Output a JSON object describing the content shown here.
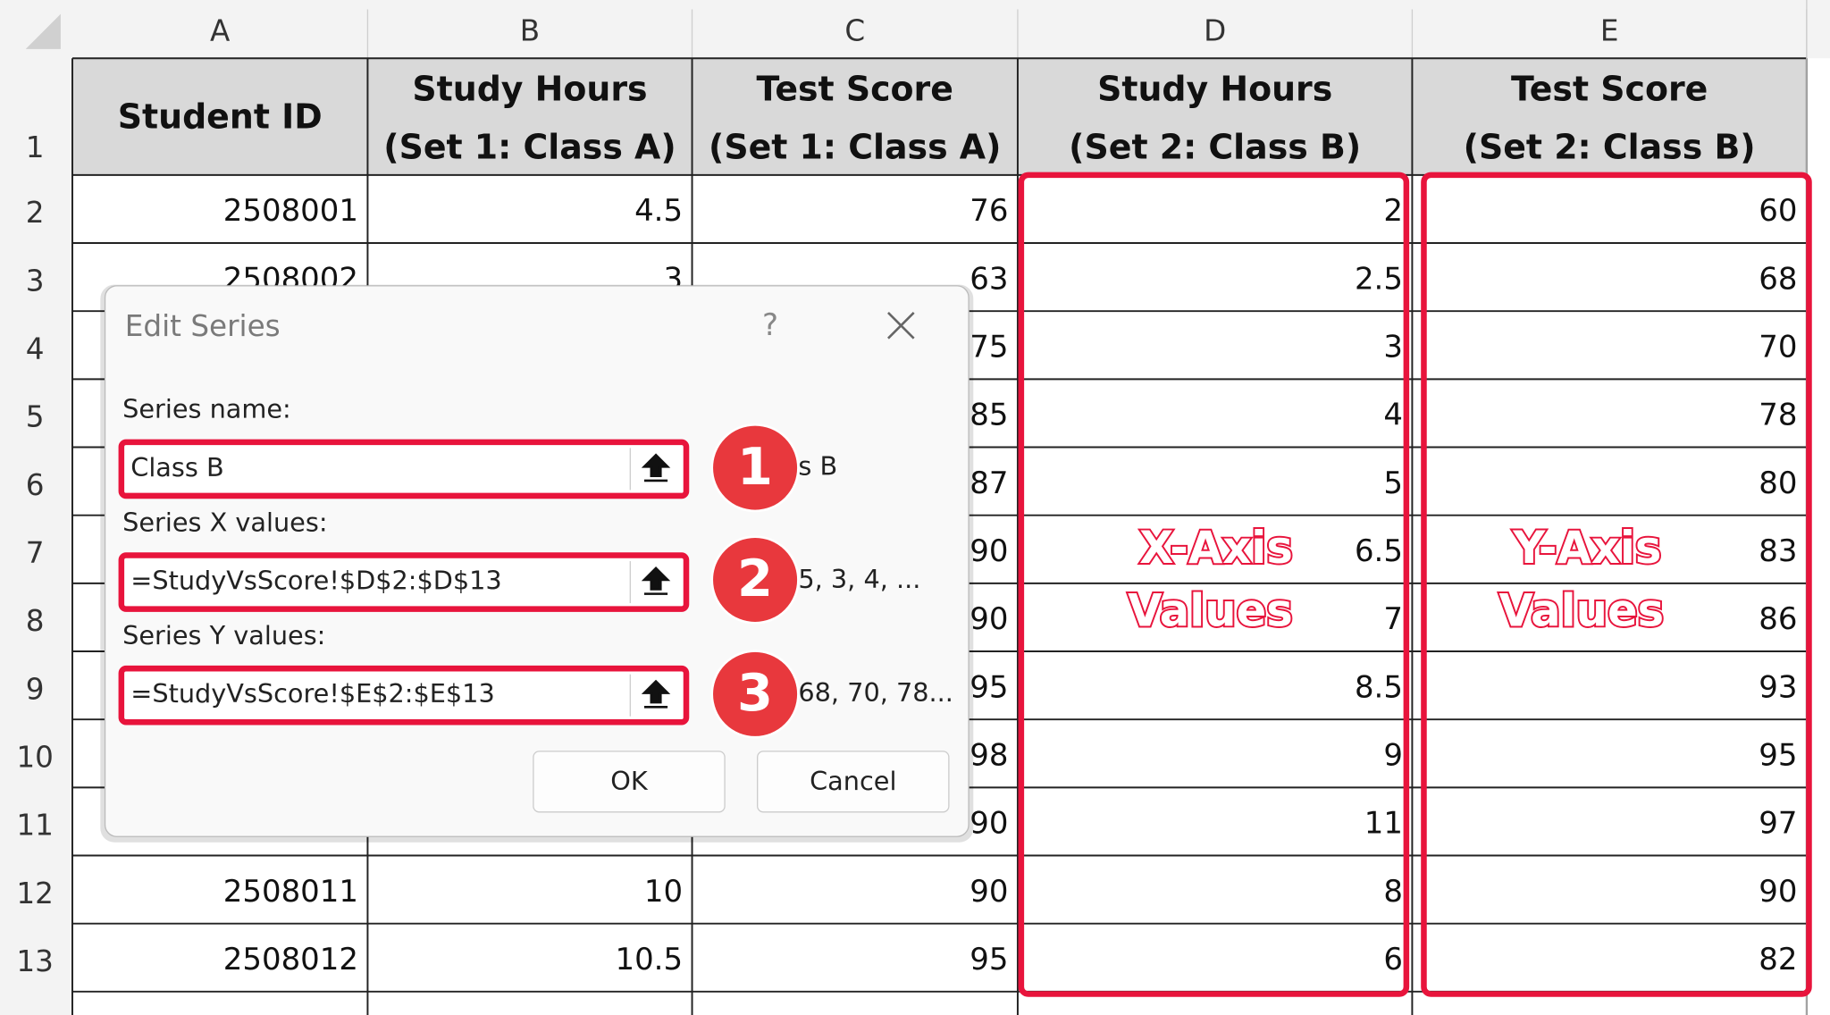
{
  "column_headers": [
    "A",
    "B",
    "C",
    "D",
    "E"
  ],
  "row_numbers": [
    1,
    2,
    3,
    4,
    5,
    6,
    7,
    8,
    9,
    10,
    11,
    12,
    13
  ],
  "table": {
    "header": [
      [
        "Student ID"
      ],
      [
        "Study Hours",
        "(Set 1: Class A)"
      ],
      [
        "Test Score",
        "(Set 1: Class A)"
      ],
      [
        "Study Hours",
        "(Set 2: Class B)"
      ],
      [
        "Test Score",
        "(Set 2: Class B)"
      ]
    ],
    "rows": [
      [
        2508001,
        4.5,
        76,
        2,
        60
      ],
      [
        2508002,
        3,
        63,
        2.5,
        68
      ],
      [
        null,
        null,
        75,
        3,
        70
      ],
      [
        null,
        null,
        85,
        4,
        78
      ],
      [
        null,
        null,
        87,
        5,
        80
      ],
      [
        null,
        null,
        90,
        6.5,
        83
      ],
      [
        null,
        null,
        90,
        7,
        86
      ],
      [
        null,
        null,
        95,
        8.5,
        93
      ],
      [
        null,
        null,
        98,
        9,
        95
      ],
      [
        null,
        null,
        90,
        11,
        97
      ],
      [
        2508011,
        10,
        90,
        8,
        90
      ],
      [
        2508012,
        10.5,
        95,
        6,
        82
      ]
    ]
  },
  "dialog": {
    "title": "Edit Series",
    "help": "?",
    "fields": [
      {
        "label": "Series name:",
        "value": "Class B",
        "preview": "s B",
        "step": 1
      },
      {
        "label": "Series X values:",
        "value": "=StudyVsScore!$D$2:$D$13",
        "preview": "5, 3, 4, ...",
        "step": 2
      },
      {
        "label": "Series Y values:",
        "value": "=StudyVsScore!$E$2:$E$13",
        "preview": "68, 70, 78...",
        "step": 3
      }
    ],
    "ok": "OK",
    "cancel": "Cancel"
  },
  "annotations": [
    {
      "lines": [
        "X-Axis",
        "Values"
      ]
    },
    {
      "lines": [
        "Y-Axis",
        "Values"
      ]
    }
  ]
}
